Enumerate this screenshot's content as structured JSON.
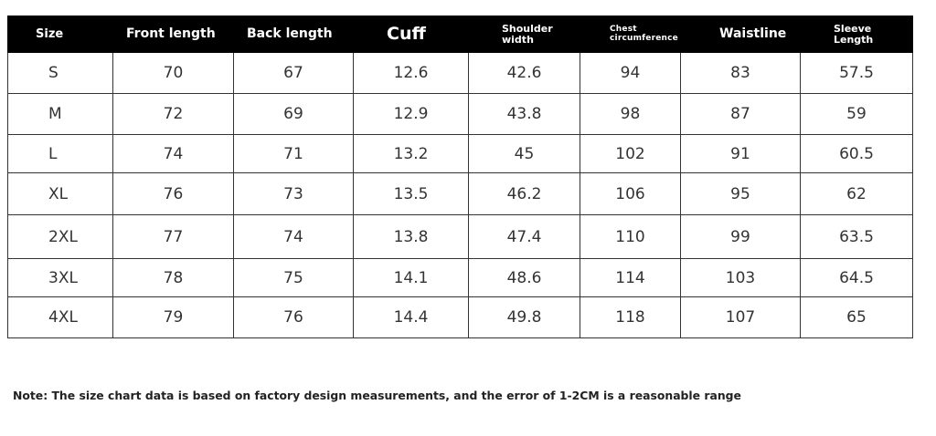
{
  "table": {
    "headers": [
      "Size",
      "Front length",
      "Back length",
      "Cuff",
      "Shoulder width",
      "Chest circumference",
      "Waistline",
      "Sleeve Length"
    ],
    "header_lines": {
      "size": "Size",
      "front_length": "Front length",
      "back_length": "Back length",
      "cuff": "Cuff",
      "shoulder_1": "Shoulder",
      "shoulder_2": "width",
      "chest_1": "Chest",
      "chest_2": "circumference",
      "waistline": "Waistline",
      "sleeve_1": "Sleeve",
      "sleeve_2": "Length"
    },
    "rows": [
      [
        "S",
        "70",
        "67",
        "12.6",
        "42.6",
        "94",
        "83",
        "57.5"
      ],
      [
        "M",
        "72",
        "69",
        "12.9",
        "43.8",
        "98",
        "87",
        "59"
      ],
      [
        "L",
        "74",
        "71",
        "13.2",
        "45",
        "102",
        "91",
        "60.5"
      ],
      [
        "XL",
        "76",
        "73",
        "13.5",
        "46.2",
        "106",
        "95",
        "62"
      ],
      [
        "2XL",
        "77",
        "74",
        "13.8",
        "47.4",
        "110",
        "99",
        "63.5"
      ],
      [
        "3XL",
        "78",
        "75",
        "14.1",
        "48.6",
        "114",
        "103",
        "64.5"
      ],
      [
        "4XL",
        "79",
        "76",
        "14.4",
        "49.8",
        "118",
        "107",
        "65"
      ]
    ]
  },
  "note": "Note: The size chart data is based on factory design measurements, and the error of 1-2CM is a reasonable range",
  "colors": {
    "header_background": "#000000",
    "header_text": "#ffffff",
    "body_text": "#333333",
    "grid_line": "#333333"
  }
}
